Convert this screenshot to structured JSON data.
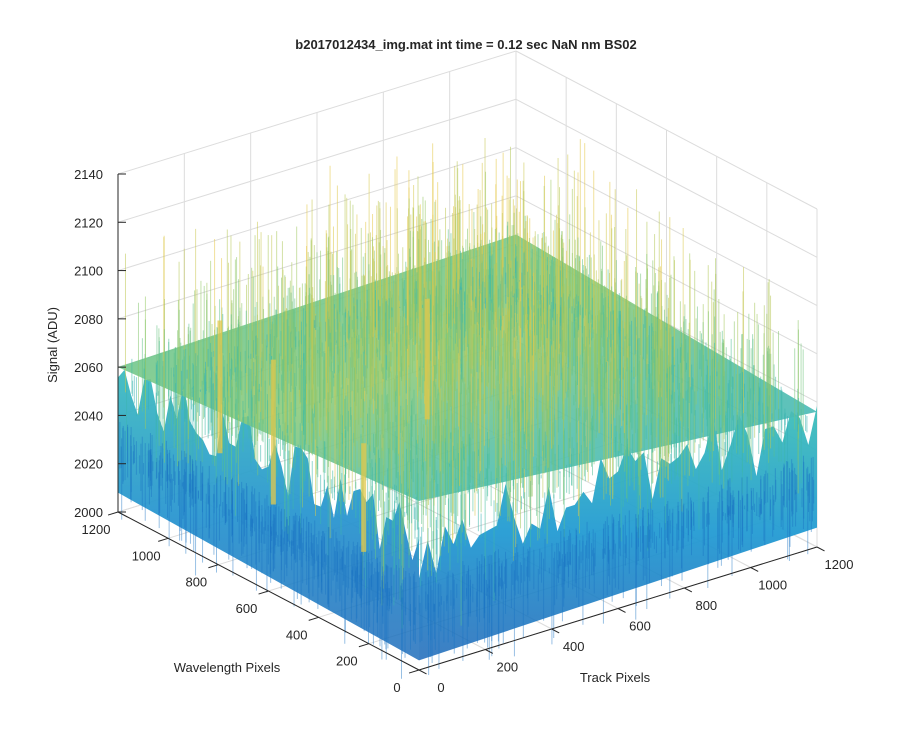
{
  "chart_data": {
    "type": "surface",
    "title": "b2017012434_img.mat int time = 0.12 sec  NaN nm BS02",
    "xlabel": "Track Pixels",
    "ylabel": "Wavelength Pixels",
    "zlabel": "Signal (ADU)",
    "xlim": [
      0,
      1200
    ],
    "ylim": [
      0,
      1200
    ],
    "zlim": [
      2000,
      2140
    ],
    "x_ticks": [
      "0",
      "200",
      "400",
      "600",
      "800",
      "1000",
      "1200"
    ],
    "y_ticks": [
      "0",
      "200",
      "400",
      "600",
      "800",
      "1000",
      "1200"
    ],
    "z_ticks": [
      "2000",
      "2020",
      "2040",
      "2060",
      "2080",
      "2100",
      "2120",
      "2140"
    ],
    "grid": true,
    "colormap": "parula",
    "surface_summary": {
      "baseline_signal_approx": 2040,
      "typical_range": [
        2010,
        2090
      ],
      "peak_signal_approx": 2135
    },
    "colors": {
      "low": "#0a5fb0",
      "mid": "#2fa9c9",
      "high": "#e6c84a"
    }
  }
}
